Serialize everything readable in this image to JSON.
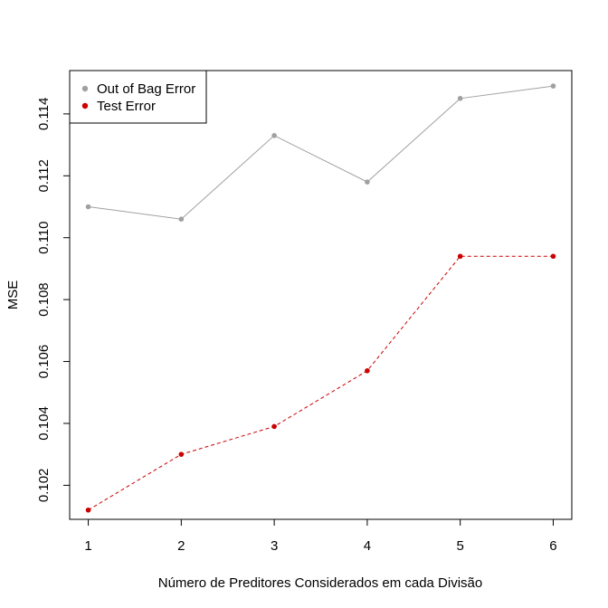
{
  "chart_data": {
    "type": "line",
    "title": "",
    "xlabel": "Número de Preditores Considerados em cada Divisão",
    "ylabel": "MSE",
    "x": [
      1,
      2,
      3,
      4,
      5,
      6
    ],
    "xticks": [
      "1",
      "2",
      "3",
      "4",
      "5",
      "6"
    ],
    "yticks": [
      "0.102",
      "0.104",
      "0.106",
      "0.108",
      "0.110",
      "0.112",
      "0.114"
    ],
    "ylim": [
      0.1009,
      0.1154
    ],
    "xlim": [
      0.8,
      6.2
    ],
    "grid": false,
    "legend_position": "top-left",
    "series": [
      {
        "name": "Out of Bag Error",
        "color": "#a0a0a0",
        "line_style": "solid",
        "values": [
          0.111,
          0.1106,
          0.1133,
          0.1118,
          0.1145,
          0.1149
        ]
      },
      {
        "name": "Test Error",
        "color": "#cc0000",
        "line_style": "dashed",
        "values": [
          0.1012,
          0.103,
          0.1039,
          0.1057,
          0.1094,
          0.1094
        ]
      }
    ]
  }
}
